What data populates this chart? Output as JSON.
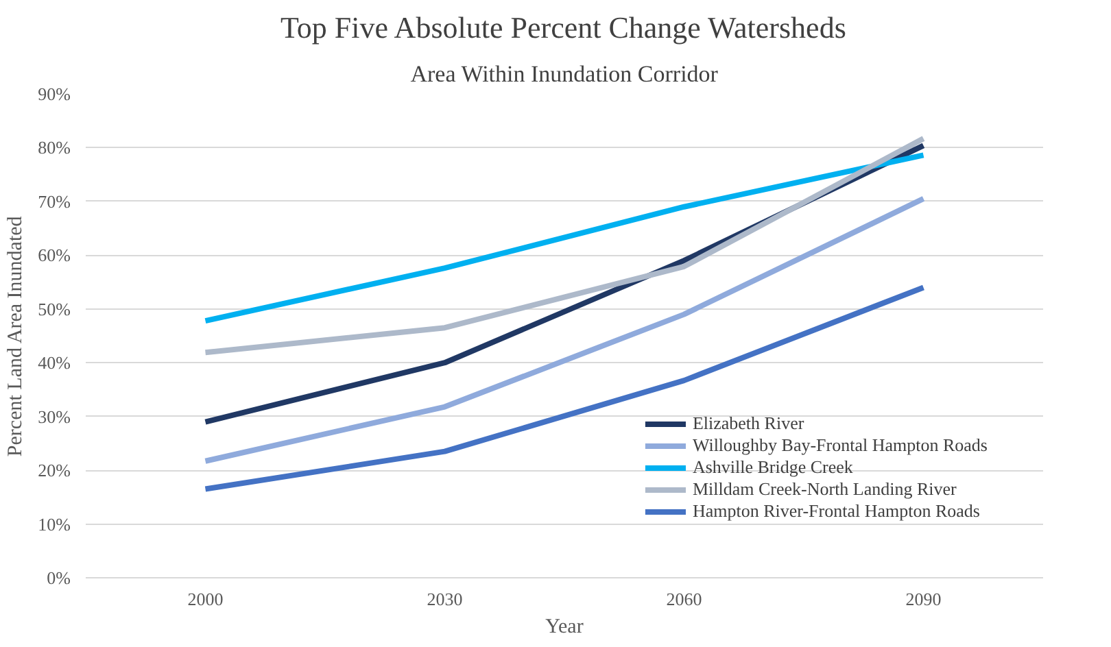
{
  "chart_data": {
    "type": "line",
    "title": "Top Five Absolute Percent Change Watersheds",
    "subtitle": "Area Within Inundation Corridor",
    "xlabel": "Year",
    "ylabel": "Percent Land Area Inundated",
    "categories": [
      "2000",
      "2030",
      "2060",
      "2090"
    ],
    "series": [
      {
        "name": "Elizabeth River",
        "color": "#203864",
        "values": [
          29,
          40,
          59,
          80.4
        ]
      },
      {
        "name": "Willoughby Bay-Frontal Hampton Roads",
        "color": "#8faadc",
        "values": [
          21.7,
          31.8,
          49,
          70.5
        ]
      },
      {
        "name": "Ashville Bridge Creek",
        "color": "#00b0f0",
        "values": [
          47.8,
          57.6,
          69,
          78.6
        ]
      },
      {
        "name": "Milldam Creek-North Landing River",
        "color": "#adb9ca",
        "values": [
          41.9,
          46.5,
          57.9,
          81.7
        ]
      },
      {
        "name": "Hampton River-Frontal Hampton Roads",
        "color": "#4472c4",
        "values": [
          16.5,
          23.5,
          36.7,
          54
        ]
      }
    ],
    "ylim": [
      0,
      90
    ],
    "yticks": [
      {
        "value": 0,
        "label": "0%"
      },
      {
        "value": 10,
        "label": "10%"
      },
      {
        "value": 20,
        "label": "20%"
      },
      {
        "value": 30,
        "label": "30%"
      },
      {
        "value": 40,
        "label": "40%"
      },
      {
        "value": 50,
        "label": "50%"
      },
      {
        "value": 60,
        "label": "60%"
      },
      {
        "value": 70,
        "label": "70%"
      },
      {
        "value": 80,
        "label": "80%"
      },
      {
        "value": 90,
        "label": "90%"
      }
    ],
    "grid": "y",
    "legend": "bottom right",
    "marker": "none",
    "line_style": "solid"
  }
}
